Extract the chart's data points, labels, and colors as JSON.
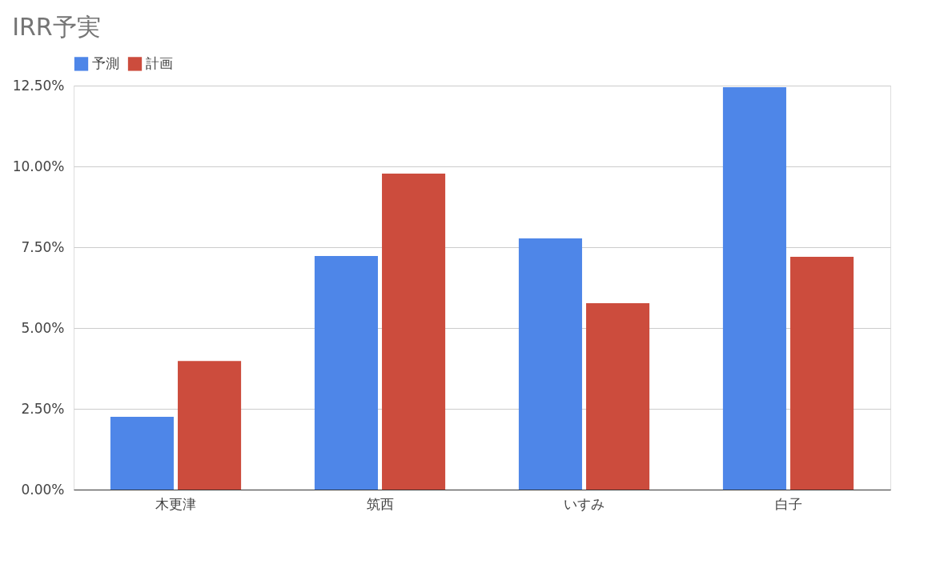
{
  "chart_data": {
    "type": "bar",
    "title": "IRR予実",
    "categories": [
      "木更津",
      "筑西",
      "いすみ",
      "白子"
    ],
    "series": [
      {
        "name": "予測",
        "color": "#4e86e8",
        "values": [
          2.25,
          7.23,
          7.77,
          12.45
        ]
      },
      {
        "name": "計画",
        "color": "#cc4c3d",
        "values": [
          3.98,
          9.78,
          5.77,
          7.2
        ]
      }
    ],
    "ylim": [
      0,
      12.5
    ],
    "yticks": [
      {
        "value": 0,
        "label": "0.00%"
      },
      {
        "value": 2.5,
        "label": "2.50%"
      },
      {
        "value": 5,
        "label": "5.00%"
      },
      {
        "value": 7.5,
        "label": "7.50%"
      },
      {
        "value": 10,
        "label": "10.00%"
      },
      {
        "value": 12.5,
        "label": "12.50%"
      }
    ],
    "grid": "y",
    "legend": "top"
  }
}
